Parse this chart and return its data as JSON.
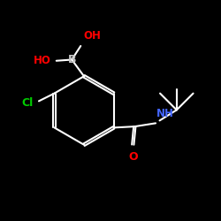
{
  "bg_color": "#000000",
  "bond_color": "#ffffff",
  "bond_width": 1.5,
  "atom_colors": {
    "B": "#c8c8c8",
    "OH": "#ff0000",
    "Cl": "#00cc00",
    "N": "#4466ff",
    "O": "#ff0000"
  },
  "font_size": 9,
  "font_size_small": 7.5
}
